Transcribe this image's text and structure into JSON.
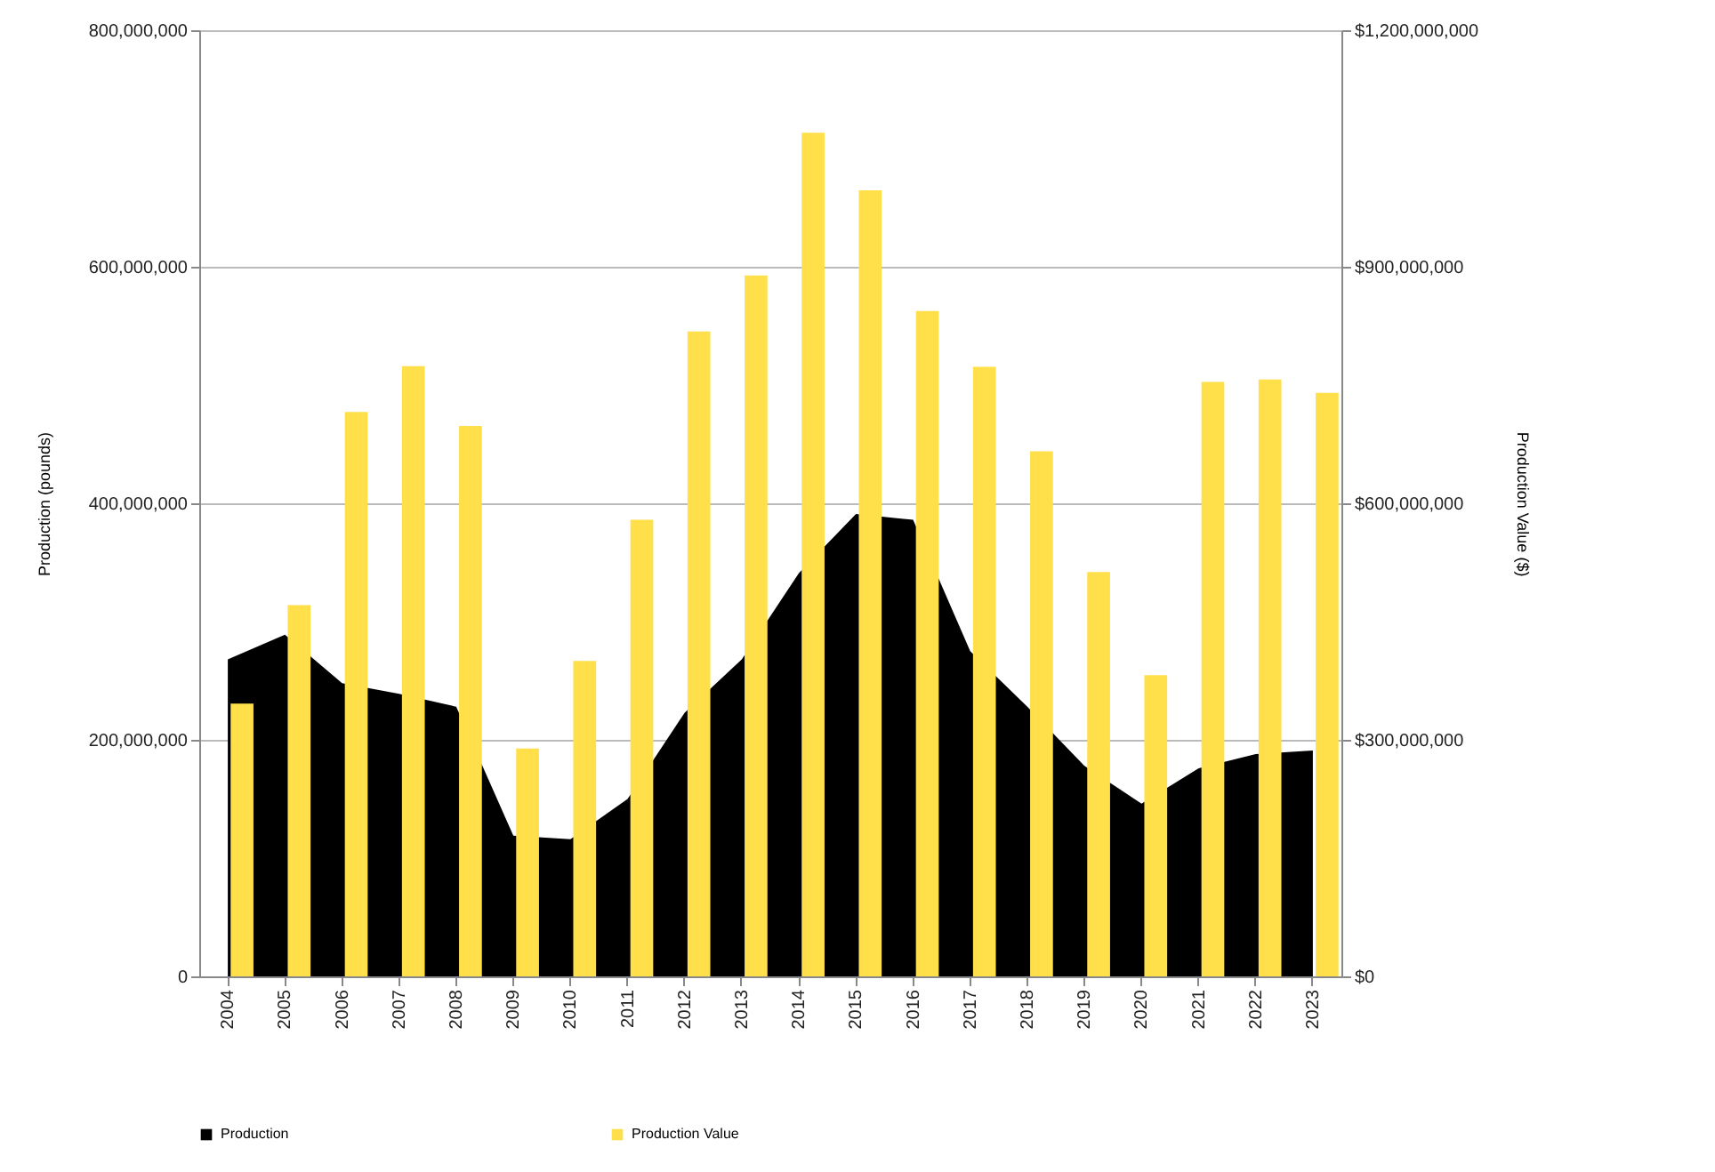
{
  "chart_data": {
    "type": "bar",
    "xlabel": null,
    "ylabel": "Production (pounds)",
    "y2label": "Production Value ($)",
    "categories": [
      "2004",
      "2005",
      "2006",
      "2007",
      "2008",
      "2009",
      "2010",
      "2011",
      "2012",
      "2013",
      "2014",
      "2015",
      "2016",
      "2017",
      "2018",
      "2019",
      "2020",
      "2021",
      "2022",
      "2023"
    ],
    "series": [
      {
        "name": "Production",
        "type": "area",
        "axis": "y",
        "color": "#000000",
        "values": [
          268000000,
          289000000,
          248000000,
          239000000,
          228000000,
          119000000,
          116000000,
          150000000,
          223000000,
          268000000,
          341000000,
          391000000,
          386000000,
          275000000,
          228000000,
          178000000,
          146000000,
          176000000,
          188000000,
          191000000
        ]
      },
      {
        "name": "Production Value",
        "axis": "y2",
        "color": "#ffe04b",
        "values": [
          346000000,
          471000000,
          716000000,
          774000000,
          698000000,
          289000000,
          400000000,
          579000000,
          818000000,
          889000000,
          1070000000,
          997000000,
          844000000,
          773000000,
          666000000,
          513000000,
          382000000,
          754000000,
          757000000,
          740000000
        ]
      }
    ],
    "ylim": [
      0,
      800000000
    ],
    "yticks": [
      {
        "value": 0,
        "label": "0"
      },
      {
        "value": 200000000,
        "label": "200,000,000"
      },
      {
        "value": 400000000,
        "label": "400,000,000"
      },
      {
        "value": 600000000,
        "label": "600,000,000"
      },
      {
        "value": 800000000,
        "label": "800,000,000"
      }
    ],
    "y2lim": [
      0,
      1200000000
    ],
    "y2ticks": [
      {
        "value": 0,
        "label": "$0"
      },
      {
        "value": 300000000,
        "label": "$300,000,000"
      },
      {
        "value": 600000000,
        "label": "$600,000,000"
      },
      {
        "value": 900000000,
        "label": "$900,000,000"
      },
      {
        "value": 1200000000,
        "label": "$1,200,000,000"
      }
    ],
    "grid": "y",
    "legend": "bottom"
  }
}
